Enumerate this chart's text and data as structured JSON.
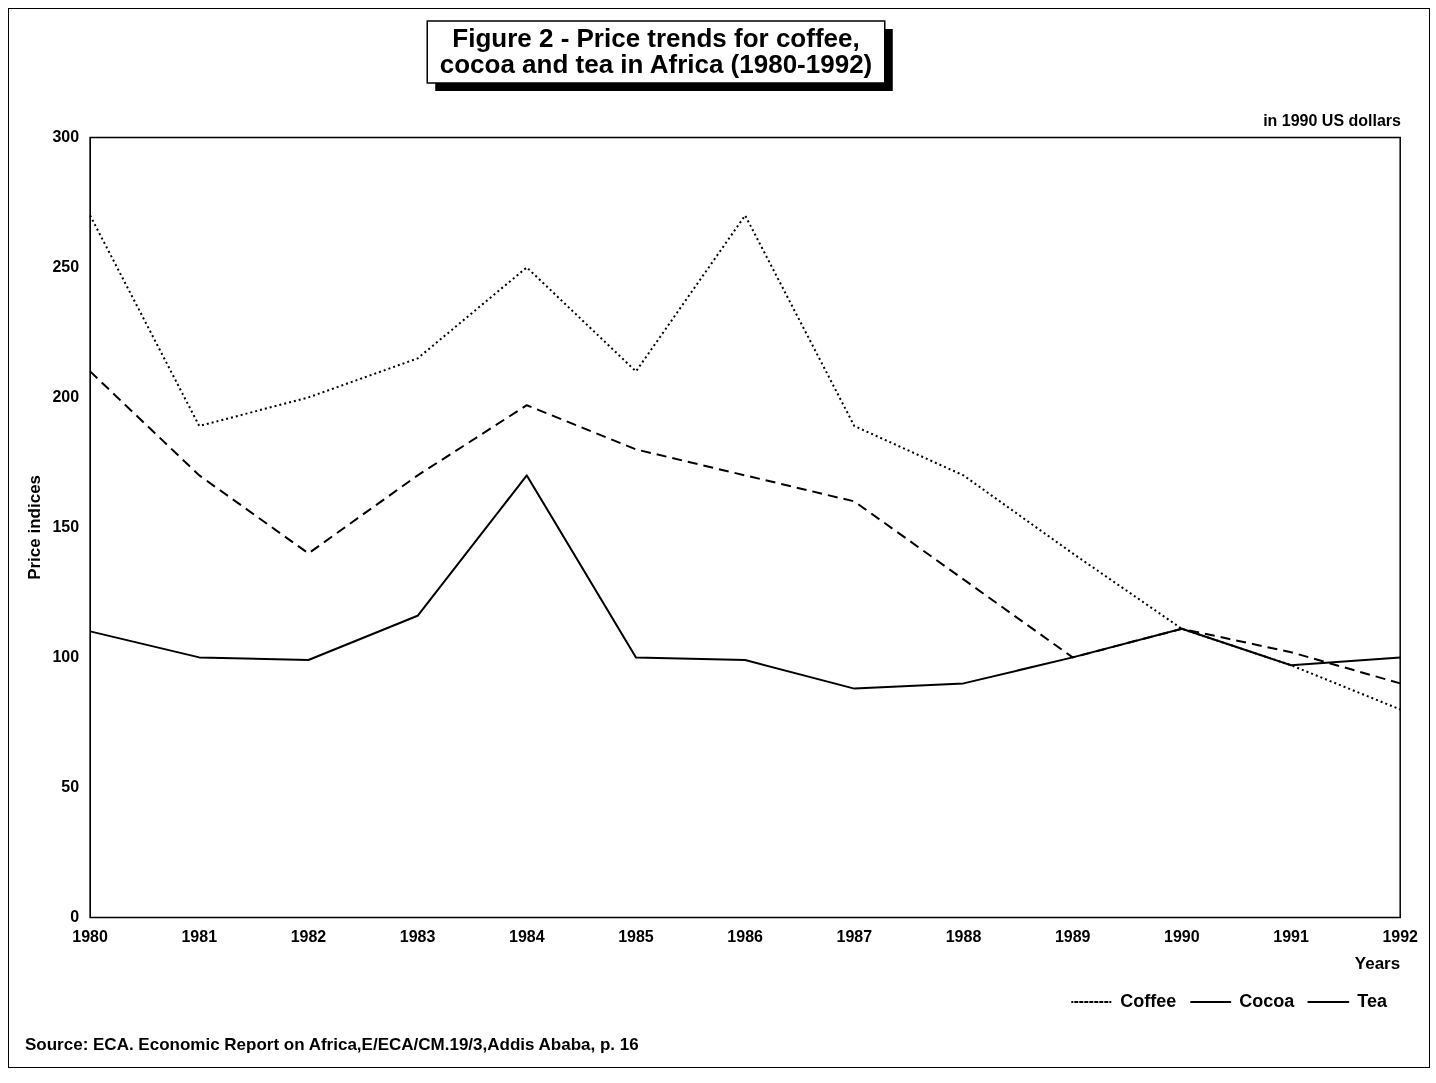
{
  "chart_data": {
    "type": "line",
    "title": "Figure 2 - Price trends for coffee, cocoa and tea in Africa (1980-1992)",
    "subtitle": "in 1990 US dollars",
    "xlabel": "Years",
    "ylabel": "Price indices",
    "categories": [
      "1980",
      "1981",
      "1982",
      "1983",
      "1984",
      "1985",
      "1986",
      "1987",
      "1988",
      "1989",
      "1990",
      "1991",
      "1992"
    ],
    "series": [
      {
        "name": "Coffee",
        "color": "#000000",
        "line_style": "dotted",
        "values": [
          270,
          189,
          200,
          215,
          250,
          210,
          270,
          189,
          170,
          140,
          111,
          97,
          80
        ]
      },
      {
        "name": "Cocoa",
        "color": "#000000",
        "line_style": "dashed",
        "values": [
          210,
          170,
          140,
          170,
          197,
          180,
          170,
          160,
          130,
          100,
          111,
          102,
          90
        ]
      },
      {
        "name": "Tea",
        "color": "#000000",
        "line_style": "solid",
        "values": [
          110,
          100,
          99,
          116,
          170,
          100,
          99,
          88,
          90,
          100,
          111,
          97,
          100
        ]
      }
    ],
    "ylim": [
      0,
      300
    ],
    "yticks": [
      0,
      50,
      100,
      150,
      200,
      250,
      300
    ],
    "grid": false,
    "legend": "bottom right",
    "marker": "none",
    "annotations": [
      "Source:  ECA. Economic Report on Africa,E/ECA/CM.19/3,Addis Ababa, p. 16"
    ]
  }
}
